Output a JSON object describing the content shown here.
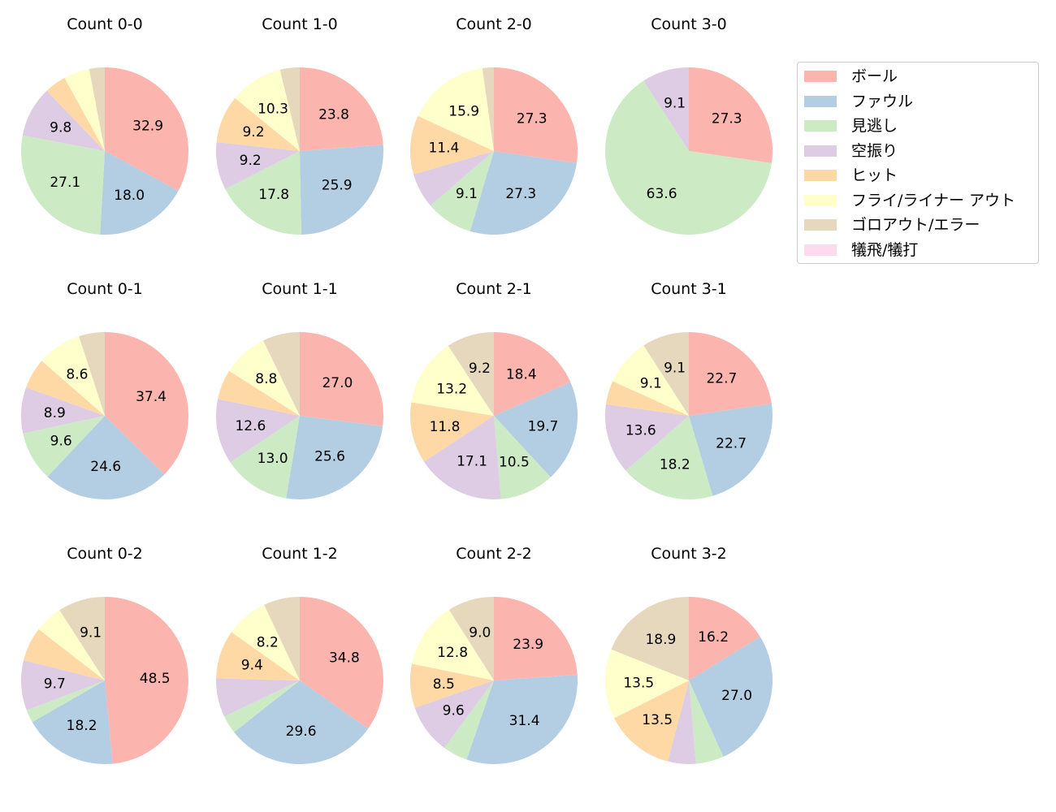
{
  "chart_data": {
    "type": "pie",
    "categories": [
      "ボール",
      "ファウル",
      "見逃し",
      "空振り",
      "ヒット",
      "フライ/ライナー アウト",
      "ゴロアウト/エラー",
      "犠飛/犠打"
    ],
    "colors": [
      "#fbb4ae",
      "#b3cde3",
      "#ccebc5",
      "#decbe4",
      "#fed9a6",
      "#ffffcc",
      "#e5d8bd",
      "#fddaec"
    ],
    "charts": [
      {
        "title": "Count 0-0",
        "values": [
          32.9,
          18.0,
          27.1,
          9.8,
          4.2,
          5.0,
          3.0,
          0.0
        ]
      },
      {
        "title": "Count 1-0",
        "values": [
          23.8,
          25.9,
          17.8,
          9.2,
          9.2,
          10.3,
          3.8,
          0.0
        ]
      },
      {
        "title": "Count 2-0",
        "values": [
          27.3,
          27.3,
          9.1,
          6.8,
          11.4,
          15.9,
          2.2,
          0.0
        ]
      },
      {
        "title": "Count 3-0",
        "values": [
          27.3,
          0.0,
          63.6,
          9.1,
          0.0,
          0.0,
          0.0,
          0.0
        ]
      },
      {
        "title": "Count 0-1",
        "values": [
          37.4,
          24.6,
          9.6,
          8.9,
          5.9,
          8.6,
          5.0,
          0.0
        ]
      },
      {
        "title": "Count 1-1",
        "values": [
          27.0,
          25.6,
          13.0,
          12.6,
          5.8,
          8.8,
          7.2,
          0.0
        ]
      },
      {
        "title": "Count 2-1",
        "values": [
          18.4,
          19.7,
          10.5,
          17.1,
          11.8,
          13.2,
          9.2,
          0.0
        ]
      },
      {
        "title": "Count 3-1",
        "values": [
          22.7,
          22.7,
          18.2,
          13.6,
          4.6,
          9.1,
          9.1,
          0.0
        ]
      },
      {
        "title": "Count 0-2",
        "values": [
          48.5,
          18.2,
          2.5,
          9.7,
          6.6,
          5.4,
          9.1,
          0.0
        ]
      },
      {
        "title": "Count 1-2",
        "values": [
          34.8,
          29.6,
          3.5,
          7.5,
          9.4,
          8.2,
          7.0,
          0.0
        ]
      },
      {
        "title": "Count 2-2",
        "values": [
          23.9,
          31.4,
          4.8,
          9.6,
          8.5,
          12.8,
          9.0,
          0.0
        ]
      },
      {
        "title": "Count 3-2",
        "values": [
          16.2,
          27.0,
          5.4,
          5.4,
          13.5,
          13.5,
          18.9,
          0.0
        ]
      }
    ],
    "label_threshold": 8,
    "start_angle": "top",
    "direction": "clockwise",
    "legend_position": "right"
  }
}
